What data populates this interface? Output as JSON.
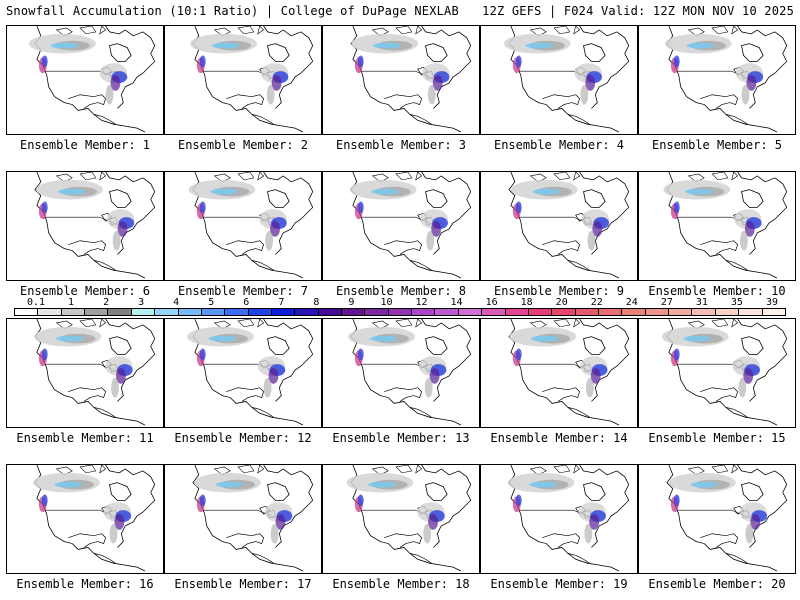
{
  "header": {
    "title": "Snowfall Accumulation (10:1 Ratio) | College of DuPage NEXLAB",
    "run_info": "12Z GEFS | F024 Valid: 12Z MON NOV 10 2025"
  },
  "selected_member": 20,
  "members": [
    {
      "label": "Ensemble Member: 1"
    },
    {
      "label": "Ensemble Member: 2"
    },
    {
      "label": "Ensemble Member: 3"
    },
    {
      "label": "Ensemble Member: 4"
    },
    {
      "label": "Ensemble Member: 5"
    },
    {
      "label": "Ensemble Member: 6"
    },
    {
      "label": "Ensemble Member: 7"
    },
    {
      "label": "Ensemble Member: 8"
    },
    {
      "label": "Ensemble Member: 9"
    },
    {
      "label": "Ensemble Member: 10"
    },
    {
      "label": "Ensemble Member: 11"
    },
    {
      "label": "Ensemble Member: 12"
    },
    {
      "label": "Ensemble Member: 13"
    },
    {
      "label": "Ensemble Member: 14"
    },
    {
      "label": "Ensemble Member: 15"
    },
    {
      "label": "Ensemble Member: 16"
    },
    {
      "label": "Ensemble Member: 17"
    },
    {
      "label": "Ensemble Member: 18"
    },
    {
      "label": "Ensemble Member: 19"
    },
    {
      "label": "Ensemble Member: 20"
    }
  ],
  "legend": {
    "labels": [
      "0.1",
      "1",
      "2",
      "3",
      "4",
      "5",
      "6",
      "7",
      "8",
      "9",
      "10",
      "12",
      "14",
      "16",
      "18",
      "20",
      "22",
      "24",
      "27",
      "31",
      "35",
      "39"
    ],
    "colors": [
      "#ffffff",
      "#e6e6e6",
      "#c8c8c8",
      "#a0a0a0",
      "#808080",
      "#b4f0f0",
      "#96d2fa",
      "#78b9fa",
      "#5a96f5",
      "#3c6ef5",
      "#1e46e6",
      "#0a1edc",
      "#2814b4",
      "#460a96",
      "#64148c",
      "#7c28a0",
      "#9632b4",
      "#aa46c8",
      "#be5ad2",
      "#d26ed7",
      "#dc5ab4",
      "#e14696",
      "#e63c78",
      "#e6466e",
      "#e65a6e",
      "#e66e6e",
      "#e68278",
      "#eb968c",
      "#f0aaa0",
      "#f5beb4",
      "#f8d2c8",
      "#fae6dc",
      "#fff0e6"
    ]
  },
  "map_colors": {
    "land": "#ffffff",
    "lines": "#000000",
    "light_snow": "#d2d2d2",
    "mid_snow": "#a8a8a8",
    "cyan_snow": "#78c8f0",
    "blue_snow": "#3246dc",
    "purple_snow": "#5a1e96",
    "pink_snow": "#c83c8c"
  }
}
